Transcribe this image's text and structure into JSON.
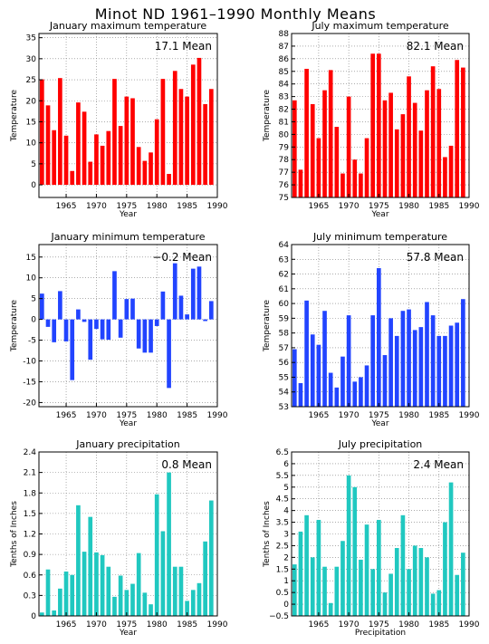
{
  "page": {
    "title": "Minot ND   1961–1990 Monthly Means"
  },
  "chart_data": [
    {
      "type": "bar",
      "title": "January maximum temperature",
      "annotation": "17.1  Mean",
      "xlabel": "Year",
      "ylabel": "Temperature",
      "color": "#ff0000",
      "xlim": [
        1960.5,
        1990
      ],
      "ylim": [
        -3,
        36
      ],
      "xticks": [
        1965,
        1970,
        1975,
        1980,
        1985,
        1990
      ],
      "yticks": [
        0,
        5,
        10,
        15,
        20,
        25,
        30,
        35
      ],
      "baseline": 0,
      "x": [
        1961,
        1962,
        1963,
        1964,
        1965,
        1966,
        1967,
        1968,
        1969,
        1970,
        1971,
        1972,
        1973,
        1974,
        1975,
        1976,
        1977,
        1978,
        1979,
        1980,
        1981,
        1982,
        1983,
        1984,
        1985,
        1986,
        1987,
        1988,
        1989
      ],
      "values": [
        25.1,
        18.9,
        13.0,
        25.4,
        11.7,
        3.3,
        19.6,
        17.4,
        5.5,
        12.0,
        9.3,
        12.8,
        25.2,
        14.0,
        21.0,
        20.6,
        9.0,
        5.7,
        7.7,
        15.6,
        25.2,
        2.6,
        27.1,
        22.8,
        21.0,
        28.6,
        30.2,
        19.2,
        22.8
      ]
    },
    {
      "type": "bar",
      "title": "July maximum temperature",
      "annotation": "82.1  Mean",
      "xlabel": "Year",
      "ylabel": "Temperature",
      "color": "#ff0000",
      "xlim": [
        1960.5,
        1990
      ],
      "ylim": [
        75,
        88
      ],
      "xticks": [
        1965,
        1970,
        1975,
        1980,
        1985,
        1990
      ],
      "yticks": [
        75,
        76,
        77,
        78,
        79,
        80,
        81,
        82,
        83,
        84,
        85,
        86,
        87,
        88
      ],
      "baseline": 75,
      "x": [
        1961,
        1962,
        1963,
        1964,
        1965,
        1966,
        1967,
        1968,
        1969,
        1970,
        1971,
        1972,
        1973,
        1974,
        1975,
        1976,
        1977,
        1978,
        1979,
        1980,
        1981,
        1982,
        1983,
        1984,
        1985,
        1986,
        1987,
        1988,
        1989
      ],
      "values": [
        82.7,
        77.2,
        85.2,
        82.4,
        79.7,
        83.5,
        85.1,
        80.6,
        76.9,
        83.0,
        78.0,
        76.9,
        79.7,
        86.4,
        86.4,
        82.7,
        83.3,
        80.4,
        81.6,
        84.6,
        82.5,
        80.3,
        83.5,
        85.4,
        83.6,
        78.2,
        79.1,
        85.9,
        85.3
      ]
    },
    {
      "type": "bar",
      "title": "January minimum temperature",
      "annotation": "−0.2  Mean",
      "xlabel": "Year",
      "ylabel": "Temperature",
      "color": "#2244ff",
      "xlim": [
        1960.5,
        1990
      ],
      "ylim": [
        -21,
        18
      ],
      "xticks": [
        1965,
        1970,
        1975,
        1980,
        1985,
        1990
      ],
      "yticks": [
        -20,
        -15,
        -10,
        -5,
        0,
        5,
        10,
        15
      ],
      "baseline": 0,
      "x": [
        1961,
        1962,
        1963,
        1964,
        1965,
        1966,
        1967,
        1968,
        1969,
        1970,
        1971,
        1972,
        1973,
        1974,
        1975,
        1976,
        1977,
        1978,
        1979,
        1980,
        1981,
        1982,
        1983,
        1984,
        1985,
        1986,
        1987,
        1988,
        1989
      ],
      "values": [
        6.2,
        -1.8,
        -5.5,
        6.8,
        -5.3,
        -14.6,
        2.4,
        -0.6,
        -9.7,
        -2.3,
        -4.8,
        -4.9,
        11.6,
        -4.4,
        4.9,
        5.0,
        -7.0,
        -8.0,
        -8.0,
        -1.6,
        6.7,
        -16.5,
        13.5,
        5.7,
        1.2,
        12.2,
        12.7,
        -0.4,
        4.4
      ]
    },
    {
      "type": "bar",
      "title": "July minimum temperature",
      "annotation": "57.8  Mean",
      "xlabel": "Year",
      "ylabel": "Temperature",
      "color": "#2244ff",
      "xlim": [
        1960.5,
        1990
      ],
      "ylim": [
        53,
        64
      ],
      "xticks": [
        1965,
        1970,
        1975,
        1980,
        1985,
        1990
      ],
      "yticks": [
        53,
        54,
        55,
        56,
        57,
        58,
        59,
        60,
        61,
        62,
        63,
        64
      ],
      "baseline": 53,
      "x": [
        1961,
        1962,
        1963,
        1964,
        1965,
        1966,
        1967,
        1968,
        1969,
        1970,
        1971,
        1972,
        1973,
        1974,
        1975,
        1976,
        1977,
        1978,
        1979,
        1980,
        1981,
        1982,
        1983,
        1984,
        1985,
        1986,
        1987,
        1988,
        1989
      ],
      "values": [
        56.9,
        54.6,
        60.2,
        57.9,
        57.2,
        59.5,
        55.3,
        54.3,
        56.4,
        59.2,
        54.7,
        55.0,
        55.8,
        59.2,
        62.4,
        56.5,
        59.0,
        57.8,
        59.5,
        59.6,
        58.2,
        58.4,
        60.1,
        59.2,
        57.8,
        57.8,
        58.5,
        58.7,
        60.3
      ]
    },
    {
      "type": "bar",
      "title": "January precipitation",
      "annotation": "0.8  Mean",
      "xlabel": "Year",
      "ylabel": "Tenths of Inches",
      "color": "#20c8c0",
      "xlim": [
        1960.5,
        1990
      ],
      "ylim": [
        0,
        2.4
      ],
      "xticks": [
        1965,
        1970,
        1975,
        1980,
        1985,
        1990
      ],
      "yticks": [
        0,
        0.3,
        0.6,
        0.9,
        1.2,
        1.5,
        1.8,
        2.1,
        2.4
      ],
      "ytick_labels": [
        "0",
        "0.3",
        "0.6",
        "0.9",
        "1.2",
        "1.5",
        "1.8",
        "2.1",
        "2.4"
      ],
      "baseline": 0,
      "x": [
        1961,
        1962,
        1963,
        1964,
        1965,
        1966,
        1967,
        1968,
        1969,
        1970,
        1971,
        1972,
        1973,
        1974,
        1975,
        1976,
        1977,
        1978,
        1979,
        1980,
        1981,
        1982,
        1983,
        1984,
        1985,
        1986,
        1987,
        1988,
        1989
      ],
      "values": [
        0.05,
        0.68,
        0.08,
        0.4,
        0.65,
        0.6,
        1.62,
        0.94,
        1.45,
        0.93,
        0.89,
        0.72,
        0.28,
        0.59,
        0.38,
        0.47,
        0.92,
        0.34,
        0.17,
        1.78,
        1.24,
        2.1,
        0.72,
        0.72,
        0.22,
        0.38,
        0.48,
        1.09,
        1.69
      ]
    },
    {
      "type": "bar",
      "title": "July precipitation",
      "annotation": "2.4  Mean",
      "xlabel": "Precipitation",
      "ylabel": "Tenths of Inches",
      "color": "#20c8c0",
      "xlim": [
        1960.5,
        1990
      ],
      "ylim": [
        -0.5,
        6.5
      ],
      "xticks": [
        1965,
        1970,
        1975,
        1980,
        1985,
        1990
      ],
      "yticks": [
        -0.5,
        0,
        0.5,
        1,
        1.5,
        2,
        2.5,
        3,
        3.5,
        4,
        4.5,
        5,
        5.5,
        6,
        6.5
      ],
      "ytick_labels": [
        "−0.5",
        "0",
        "0.5",
        "1",
        "1.5",
        "2",
        "2.5",
        "3",
        "3.5",
        "4",
        "4.5",
        "5",
        "5.5",
        "6",
        "6.5"
      ],
      "baseline": -0.5,
      "x": [
        1961,
        1962,
        1963,
        1964,
        1965,
        1966,
        1967,
        1968,
        1969,
        1970,
        1971,
        1972,
        1973,
        1974,
        1975,
        1976,
        1977,
        1978,
        1979,
        1980,
        1981,
        1982,
        1983,
        1984,
        1985,
        1986,
        1987,
        1988,
        1989
      ],
      "values": [
        1.7,
        3.1,
        3.8,
        2.0,
        3.6,
        1.6,
        0.05,
        1.6,
        2.7,
        5.5,
        5.0,
        1.9,
        3.4,
        1.5,
        3.6,
        0.5,
        1.3,
        2.4,
        3.8,
        1.5,
        2.5,
        2.4,
        2.0,
        0.45,
        0.6,
        3.5,
        5.2,
        1.25,
        2.2
      ]
    }
  ]
}
